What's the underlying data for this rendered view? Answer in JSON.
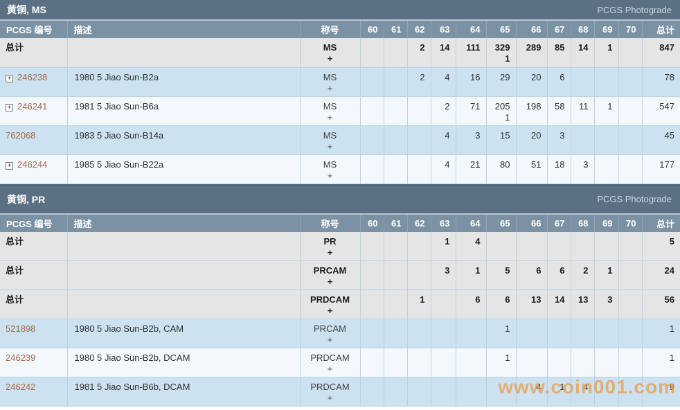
{
  "watermark": "www.coin001.com",
  "icons": {
    "expand": "+"
  },
  "columns": {
    "number": "PCGS 编号",
    "description": "描述",
    "designation": "称号",
    "grades": [
      "60",
      "61",
      "62",
      "63",
      "64",
      "65",
      "66",
      "67",
      "68",
      "69",
      "70"
    ],
    "total": "总计"
  },
  "tables": [
    {
      "title": "黄铜, MS",
      "photograde_label": "PCGS Photograde",
      "rows": [
        {
          "type": "total",
          "number_label": "总计",
          "expandable": false,
          "description": "",
          "designation": "MS",
          "designation_plus": "+",
          "grades": [
            "",
            "",
            "2",
            "14",
            "111",
            "329",
            "289",
            "85",
            "14",
            "1",
            ""
          ],
          "grades_plus": [
            "",
            "",
            "",
            "",
            "",
            "1",
            "",
            "",
            "",
            "",
            ""
          ],
          "total": "847",
          "total_plus": ""
        },
        {
          "type": "detail",
          "number_label": "246238",
          "expandable": true,
          "description": "1980 5 Jiao Sun-B2a",
          "designation": "MS",
          "designation_plus": "+",
          "grades": [
            "",
            "",
            "2",
            "4",
            "16",
            "29",
            "20",
            "6",
            "",
            "",
            ""
          ],
          "total": "78",
          "total_plus": ""
        },
        {
          "type": "detail",
          "number_label": "246241",
          "expandable": true,
          "description": "1981 5 Jiao Sun-B6a",
          "designation": "MS",
          "designation_plus": "+",
          "grades": [
            "",
            "",
            "",
            "2",
            "71",
            "205",
            "198",
            "58",
            "11",
            "1",
            ""
          ],
          "grades_plus": [
            "",
            "",
            "",
            "",
            "",
            "1",
            "",
            "",
            "",
            "",
            ""
          ],
          "total": "547",
          "total_plus": ""
        },
        {
          "type": "detail",
          "number_label": "762068",
          "expandable": false,
          "description": "1983 5 Jiao Sun-B14a",
          "designation": "MS",
          "designation_plus": "+",
          "grades": [
            "",
            "",
            "",
            "4",
            "3",
            "15",
            "20",
            "3",
            "",
            "",
            ""
          ],
          "total": "45",
          "total_plus": ""
        },
        {
          "type": "detail",
          "number_label": "246244",
          "expandable": true,
          "description": "1985 5 Jiao Sun-B22a",
          "designation": "MS",
          "designation_plus": "+",
          "grades": [
            "",
            "",
            "",
            "4",
            "21",
            "80",
            "51",
            "18",
            "3",
            "",
            ""
          ],
          "total": "177",
          "total_plus": ""
        }
      ]
    },
    {
      "title": "黄铜, PR",
      "photograde_label": "PCGS Photograde",
      "rows": [
        {
          "type": "total",
          "number_label": "总计",
          "expandable": false,
          "description": "",
          "designation": "PR",
          "designation_plus": "+",
          "grades": [
            "",
            "",
            "",
            "1",
            "4",
            "",
            "",
            "",
            "",
            "",
            ""
          ],
          "total": "5",
          "total_plus": ""
        },
        {
          "type": "total",
          "number_label": "总计",
          "expandable": false,
          "description": "",
          "designation": "PRCAM",
          "designation_plus": "+",
          "grades": [
            "",
            "",
            "",
            "3",
            "1",
            "5",
            "6",
            "6",
            "2",
            "1",
            ""
          ],
          "total": "24",
          "total_plus": ""
        },
        {
          "type": "total",
          "number_label": "总计",
          "expandable": false,
          "description": "",
          "designation": "PRDCAM",
          "designation_plus": "+",
          "grades": [
            "",
            "",
            "1",
            "",
            "6",
            "6",
            "13",
            "14",
            "13",
            "3",
            ""
          ],
          "total": "56",
          "total_plus": ""
        },
        {
          "type": "detail",
          "number_label": "521898",
          "expandable": false,
          "description": "1980 5 Jiao Sun-B2b, CAM",
          "designation": "PRCAM",
          "designation_plus": "+",
          "grades": [
            "",
            "",
            "",
            "",
            "",
            "1",
            "",
            "",
            "",
            "",
            ""
          ],
          "total": "1",
          "total_plus": ""
        },
        {
          "type": "detail",
          "number_label": "246239",
          "expandable": false,
          "description": "1980 5 Jiao Sun-B2b, DCAM",
          "designation": "PRDCAM",
          "designation_plus": "+",
          "grades": [
            "",
            "",
            "",
            "",
            "",
            "1",
            "",
            "",
            "",
            "",
            ""
          ],
          "total": "1",
          "total_plus": ""
        },
        {
          "type": "detail",
          "number_label": "246242",
          "expandable": false,
          "description": "1981 5 Jiao Sun-B6b, DCAM",
          "designation": "PRDCAM",
          "designation_plus": "+",
          "grades": [
            "",
            "",
            "",
            "",
            "",
            "",
            "4",
            "1",
            "4",
            "",
            ""
          ],
          "total": "9",
          "total_plus": ""
        }
      ]
    }
  ]
}
